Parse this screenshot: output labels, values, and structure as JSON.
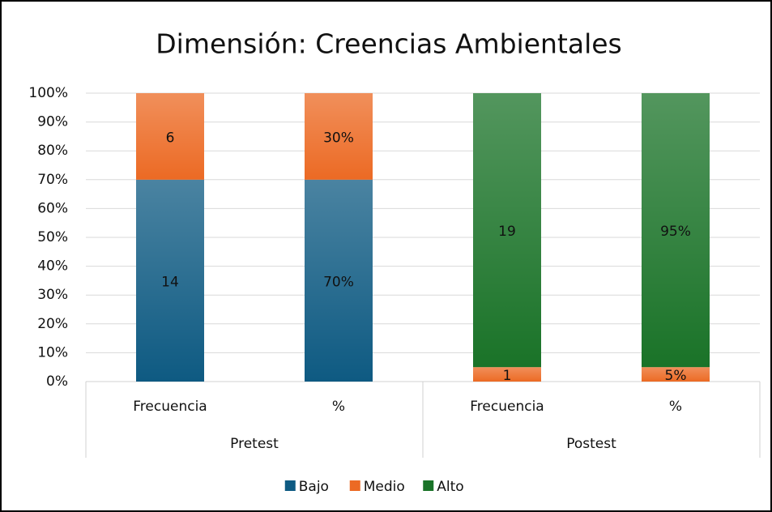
{
  "chart_data": {
    "type": "stacked_percent_bar",
    "title": "Dimensión: Creencias Ambientales",
    "categories": [
      "Frecuencia",
      "%",
      "Frecuencia",
      "%"
    ],
    "groups": [
      "Pretest",
      "Postest"
    ],
    "series": [
      {
        "name": "Bajo",
        "color": "#0e5a82",
        "values": [
          14,
          70,
          null,
          null
        ],
        "value_labels": [
          "14",
          "70%",
          null,
          null
        ]
      },
      {
        "name": "Medio",
        "color": "#ec6a24",
        "values": [
          6,
          30,
          1,
          5
        ],
        "value_labels": [
          "6",
          "30%",
          "1",
          "5%"
        ]
      },
      {
        "name": "Alto",
        "color": "#1a7328",
        "values": [
          null,
          null,
          19,
          95
        ],
        "value_labels": [
          null,
          null,
          "19",
          "95%"
        ]
      }
    ],
    "ylim": [
      0,
      100
    ],
    "yticks": [
      {
        "value": 0,
        "label": "0%"
      },
      {
        "value": 10,
        "label": "10%"
      },
      {
        "value": 20,
        "label": "20%"
      },
      {
        "value": 30,
        "label": "30%"
      },
      {
        "value": 40,
        "label": "40%"
      },
      {
        "value": 50,
        "label": "50%"
      },
      {
        "value": 60,
        "label": "60%"
      },
      {
        "value": 70,
        "label": "70%"
      },
      {
        "value": 80,
        "label": "80%"
      },
      {
        "value": 90,
        "label": "90%"
      },
      {
        "value": 100,
        "label": "100%"
      }
    ],
    "grid": true,
    "legend": "bottom"
  }
}
